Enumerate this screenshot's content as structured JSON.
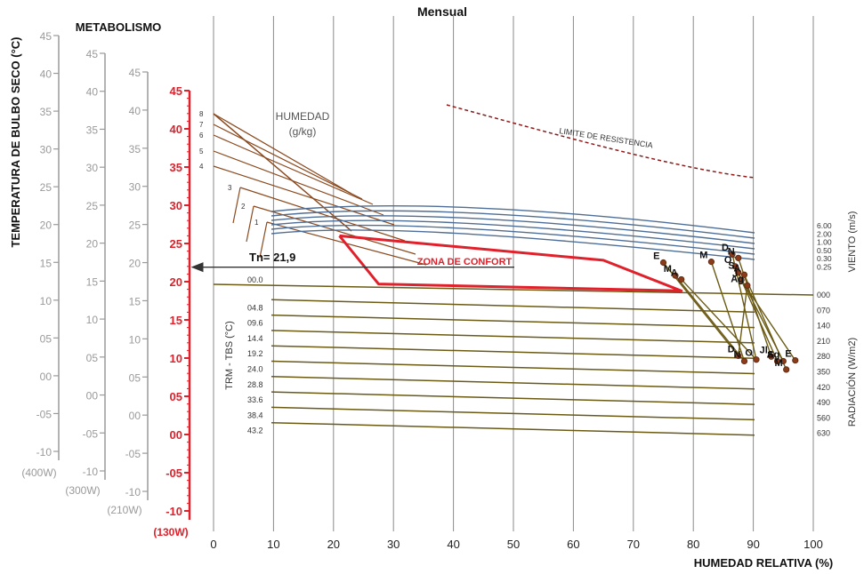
{
  "chart_data": {
    "type": "line",
    "title": "Mensual",
    "xlabel": "HUMEDAD RELATIVA (%)",
    "ylabel": "TEMPERATURA DE BULBO SECO (°C)",
    "metabolism_label": "METABOLISMO",
    "x_ticks": [
      0,
      10,
      20,
      30,
      40,
      50,
      60,
      70,
      80,
      90,
      100
    ],
    "xlim": [
      0,
      100
    ],
    "ylim": [
      -10,
      45
    ],
    "temperature_scales": [
      {
        "label": "(400W)",
        "ticks": [
          "45",
          "40",
          "35",
          "30",
          "25",
          "20",
          "15",
          "10",
          "05",
          "00",
          "-05",
          "-10"
        ],
        "color": "#9a9a9a"
      },
      {
        "label": "(300W)",
        "ticks": [
          "45",
          "40",
          "35",
          "30",
          "25",
          "20",
          "15",
          "10",
          "05",
          "00",
          "-05",
          "-10"
        ],
        "color": "#9a9a9a"
      },
      {
        "label": "(210W)",
        "ticks": [
          "45",
          "40",
          "35",
          "30",
          "25",
          "20",
          "15",
          "10",
          "05",
          "00",
          "-05",
          "-10"
        ],
        "color": "#9a9a9a"
      },
      {
        "label": "(130W)",
        "ticks": [
          "45",
          "40",
          "35",
          "30",
          "25",
          "20",
          "15",
          "10",
          "05",
          "00",
          "-05",
          "-10"
        ],
        "color": "#e0202a"
      }
    ],
    "humidity_label": "HUMEDAD\n(g/kg)",
    "humidity_label_line1": "HUMEDAD",
    "humidity_label_line2": "(g/kg)",
    "humidity_lines": [
      "8",
      "7",
      "6",
      "5",
      "4",
      "3",
      "2",
      "1"
    ],
    "resistance_label": "LIMITE DE RESISTENCIA",
    "comfort_zone_label": "ZONA DE CONFORT",
    "comfort_zone": [
      [
        21,
        26
      ],
      [
        65,
        22.8
      ],
      [
        78,
        18.8
      ],
      [
        27.5,
        19.7
      ],
      [
        21,
        26
      ]
    ],
    "neutral_temperature": {
      "label": "Tn= 21,9",
      "value": 21.9
    },
    "wind_label": "VIENTO (m/s)",
    "wind_values": [
      "6.00",
      "2.00",
      "1.00",
      "0.50",
      "0.30",
      "0.25"
    ],
    "radiation_label": "RADIACIÓN (W/m2)",
    "radiation_values": [
      "000",
      "070",
      "140",
      "210",
      "280",
      "350",
      "420",
      "490",
      "560",
      "630"
    ],
    "trm_label": "TRM - TBS (°C)",
    "trm_values": [
      "00.0",
      "04.8",
      "09.6",
      "14.4",
      "19.2",
      "24.0",
      "28.8",
      "33.6",
      "38.4",
      "43.2"
    ],
    "monthly_series": {
      "upper": [
        {
          "label": "E",
          "x": 75,
          "y": 22.5
        },
        {
          "label": "M",
          "x": 83,
          "y": 22.6
        },
        {
          "label": "D",
          "x": 86.5,
          "y": 23.6
        },
        {
          "label": "N",
          "x": 87.5,
          "y": 23.1
        },
        {
          "label": "O",
          "x": 87,
          "y": 22
        },
        {
          "label": "S",
          "x": 87.5,
          "y": 21.2
        },
        {
          "label": "J",
          "x": 88,
          "y": 20.2
        },
        {
          "label": "A",
          "x": 88.5,
          "y": 20.9
        },
        {
          "label": "Ag",
          "x": 89,
          "y": 19.5
        },
        {
          "label": "M",
          "x": 77,
          "y": 20.8
        },
        {
          "label": "A",
          "x": 78,
          "y": 20.3
        }
      ],
      "lower": [
        {
          "label": "D",
          "x": 87.5,
          "y": 10.3
        },
        {
          "label": "N",
          "x": 88.5,
          "y": 9.6
        },
        {
          "label": "O",
          "x": 90.5,
          "y": 9.8
        },
        {
          "label": "Jl",
          "x": 93,
          "y": 10.2
        },
        {
          "label": "S",
          "x": 94,
          "y": 9.6
        },
        {
          "label": "Ag",
          "x": 95,
          "y": 9.6
        },
        {
          "label": "E",
          "x": 97,
          "y": 9.7
        },
        {
          "label": "M",
          "x": 95.5,
          "y": 8.5
        }
      ]
    }
  }
}
